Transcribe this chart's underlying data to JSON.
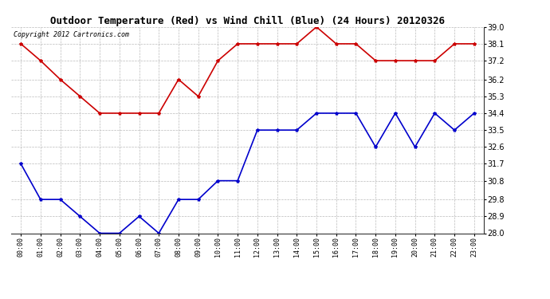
{
  "title": "Outdoor Temperature (Red) vs Wind Chill (Blue) (24 Hours) 20120326",
  "copyright_text": "Copyright 2012 Cartronics.com",
  "hours": [
    "00:00",
    "01:00",
    "02:00",
    "03:00",
    "04:00",
    "05:00",
    "06:00",
    "07:00",
    "08:00",
    "09:00",
    "10:00",
    "11:00",
    "12:00",
    "13:00",
    "14:00",
    "15:00",
    "16:00",
    "17:00",
    "18:00",
    "19:00",
    "20:00",
    "21:00",
    "22:00",
    "23:00"
  ],
  "temp_red": [
    38.1,
    37.2,
    36.2,
    35.3,
    34.4,
    34.4,
    34.4,
    34.4,
    36.2,
    35.3,
    37.2,
    38.1,
    38.1,
    38.1,
    38.1,
    39.0,
    38.1,
    38.1,
    37.2,
    37.2,
    37.2,
    37.2,
    38.1,
    38.1
  ],
  "wind_chill_blue": [
    31.7,
    29.8,
    29.8,
    28.9,
    28.0,
    28.0,
    28.9,
    28.0,
    29.8,
    29.8,
    30.8,
    30.8,
    33.5,
    33.5,
    33.5,
    34.4,
    34.4,
    34.4,
    32.6,
    34.4,
    32.6,
    34.4,
    33.5,
    34.4
  ],
  "ylim": [
    28.0,
    39.0
  ],
  "yticks": [
    28.0,
    28.9,
    29.8,
    30.8,
    31.7,
    32.6,
    33.5,
    34.4,
    35.3,
    36.2,
    37.2,
    38.1,
    39.0
  ],
  "bg_color": "#ffffff",
  "grid_color": "#bbbbbb",
  "red_color": "#cc0000",
  "blue_color": "#0000cc",
  "title_fontsize": 9,
  "copyright_fontsize": 6,
  "markersize": 3,
  "linewidth": 1.2
}
